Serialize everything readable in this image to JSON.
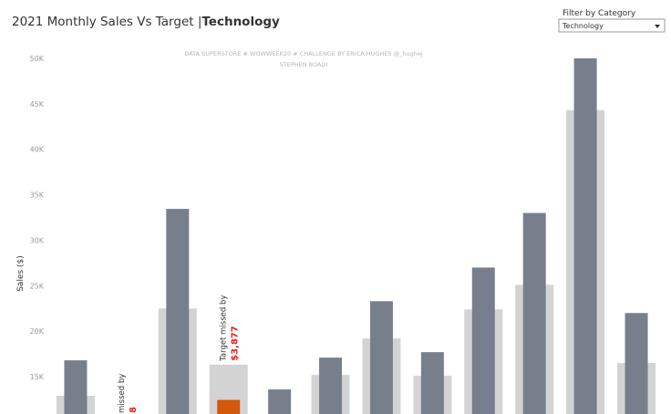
{
  "chart_data": {
    "type": "bar",
    "title": "2021 Monthly Sales Vs Target |",
    "title_category": "Technology",
    "filter_label": "Filter by Category",
    "filter_value": "Technology",
    "subtitle_lines": [
      "DATA SUPERSTORE # WOWWEEK20 # CHALLENGE BY ERICA HUGHES @_hughej",
      "STEPHEN BOADI"
    ],
    "y_label": "Sales ($)",
    "categories": [
      null,
      null,
      null,
      null,
      null,
      null,
      null,
      null,
      null,
      null,
      null,
      null
    ],
    "series": [
      {
        "name": "Target",
        "color": "#d3d3d3",
        "values": [
          12900,
          null,
          22500,
          16327,
          null,
          15200,
          19200,
          15100,
          22400,
          25100,
          44300,
          16500
        ]
      },
      {
        "name": "Sales",
        "color": "#787f8c",
        "below_target_color": "#d4570b",
        "values": [
          16800,
          null,
          33450,
          12450,
          13600,
          17100,
          23300,
          17700,
          27000,
          33000,
          50000,
          22000
        ]
      }
    ],
    "annotations": [
      {
        "index": 1,
        "text": "missed by",
        "value_label": "8"
      },
      {
        "index": 3,
        "text": "Target missed by",
        "value_label": "$3,877"
      }
    ],
    "ylim": [
      10900,
      51000
    ],
    "yticks": [
      {
        "value": 15000,
        "label": "15K"
      },
      {
        "value": 20000,
        "label": "20K"
      },
      {
        "value": 25000,
        "label": "25K"
      },
      {
        "value": 30000,
        "label": "30K"
      },
      {
        "value": 35000,
        "label": "35K"
      },
      {
        "value": 40000,
        "label": "40K"
      },
      {
        "value": 45000,
        "label": "45K"
      },
      {
        "value": 50000,
        "label": "50K"
      }
    ],
    "grid": false
  }
}
